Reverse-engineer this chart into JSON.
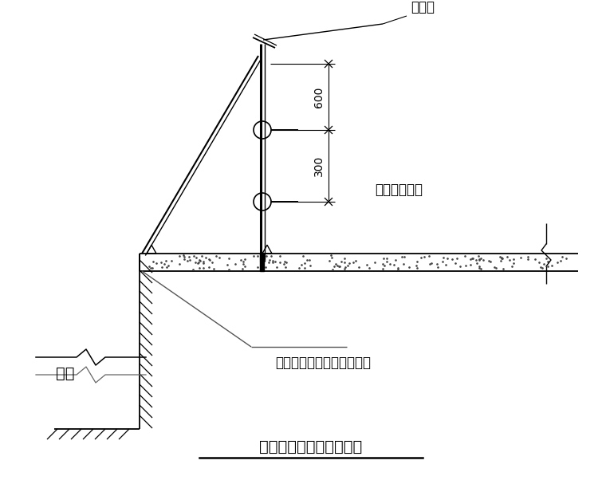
{
  "title": "基坑周边防护栏杆示意图",
  "label_safety_net": "安全网",
  "label_road": "现场临时道路",
  "label_anchor": "锚筋与钢管脚手架焊接固定",
  "label_pit": "基坑",
  "dim_600": "600",
  "dim_300": "300",
  "bg_color": "#ffffff",
  "line_color": "#000000",
  "font_size_label": 12,
  "font_size_dim": 10,
  "font_size_title": 14
}
